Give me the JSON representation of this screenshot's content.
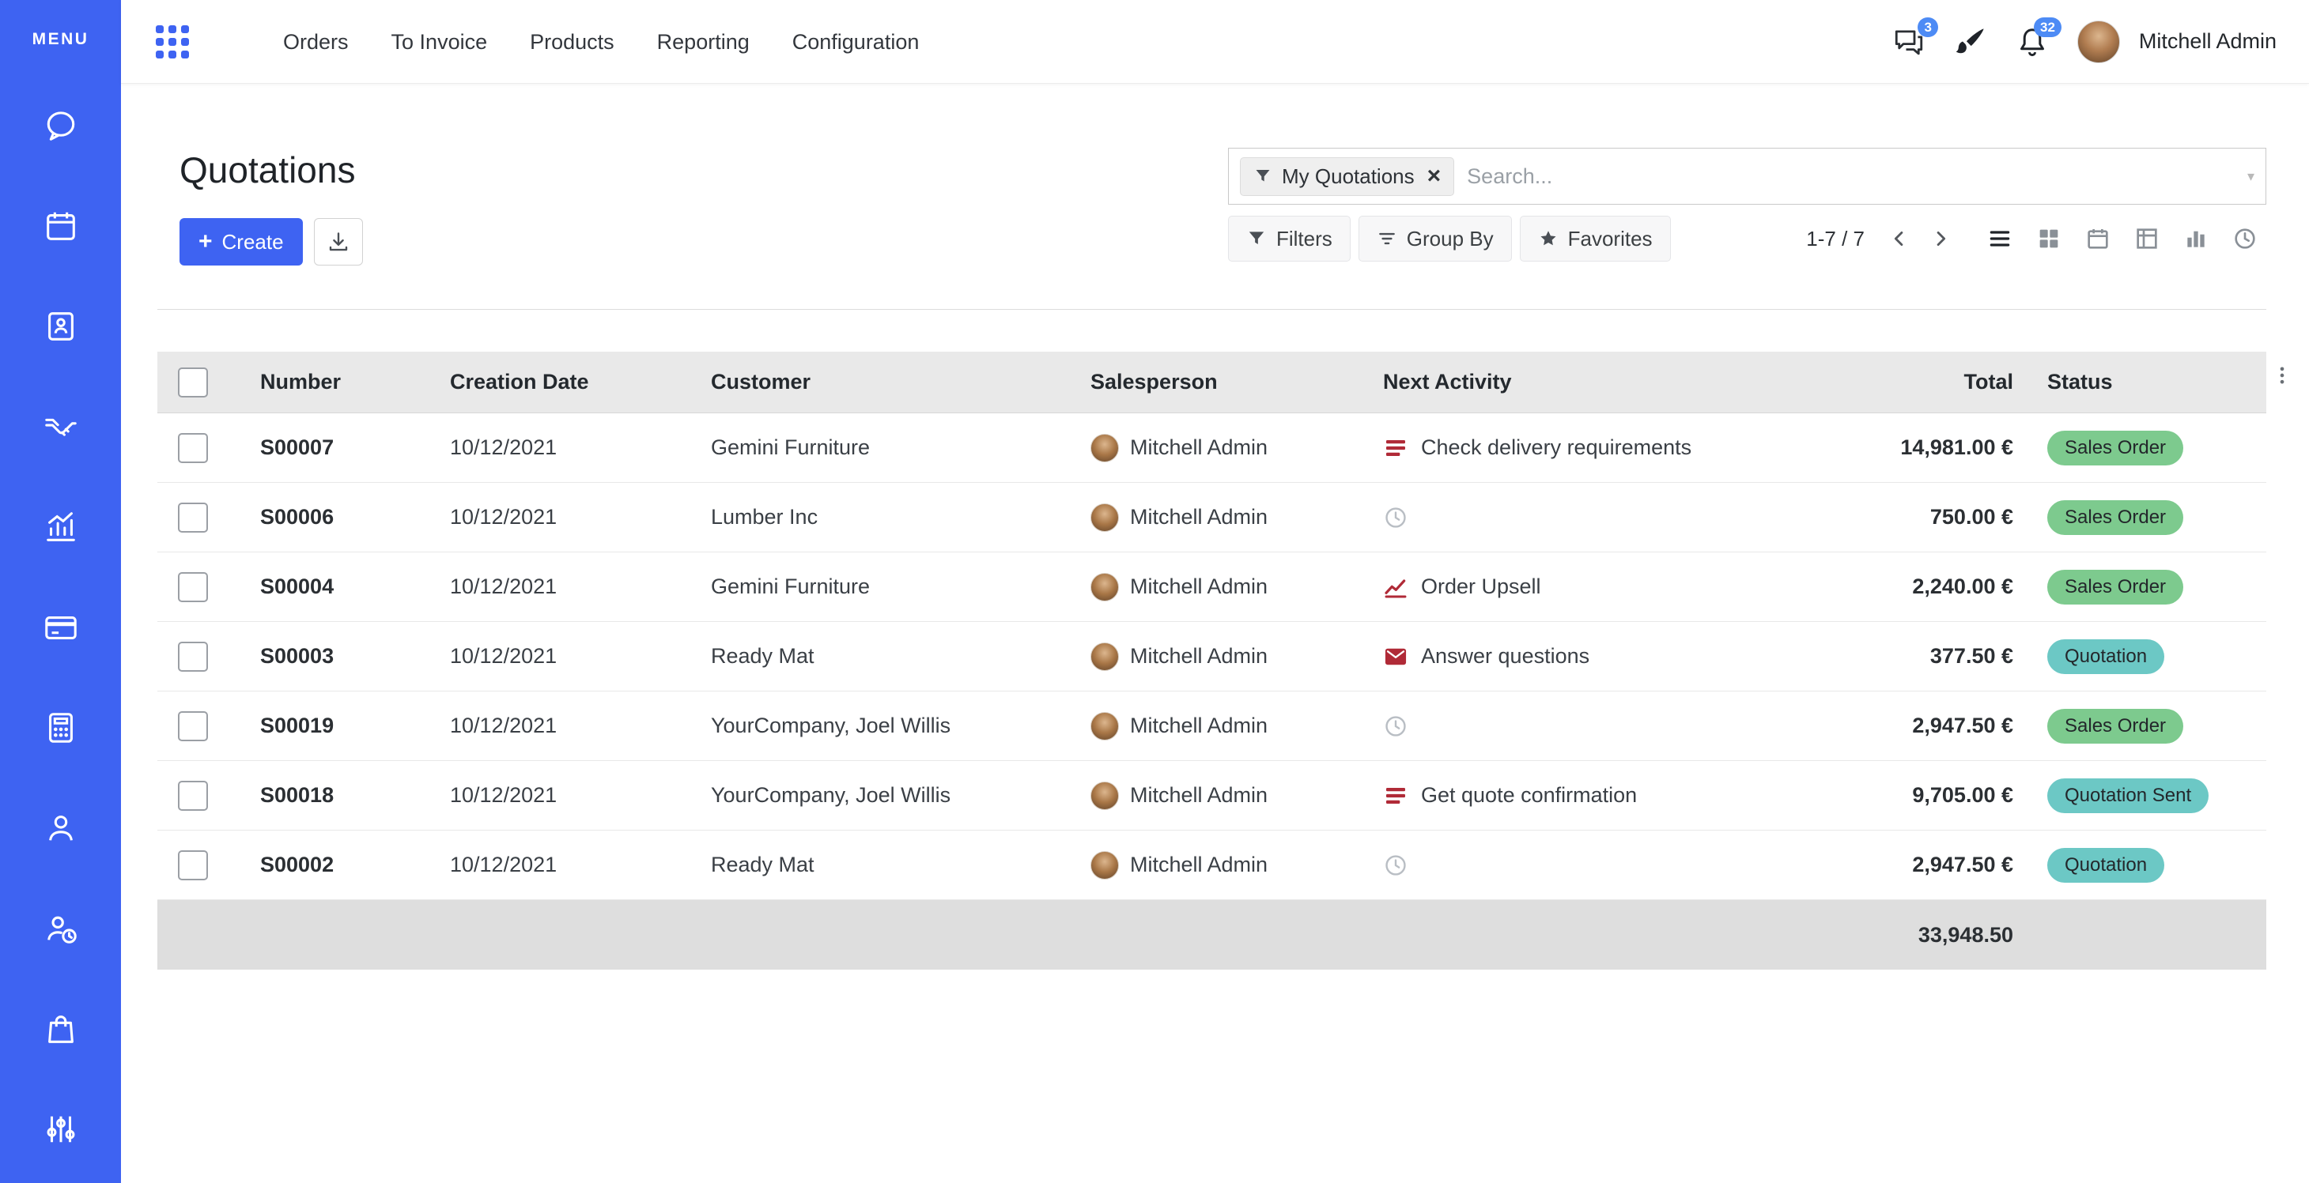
{
  "colors": {
    "sidebar_bg": "#3E63F2",
    "primary": "#3E63F2",
    "badge_blue": "#4D8BF5",
    "status_green": "#7DCA8E",
    "status_teal": "#6CC8C5",
    "activity_red": "#B02A37"
  },
  "sidebar": {
    "menu_label": "MENU",
    "icons": [
      "discuss",
      "calendar",
      "contacts",
      "crm",
      "sales",
      "billing",
      "accounting",
      "employees",
      "recruitment",
      "purchase",
      "settings"
    ]
  },
  "topbar": {
    "nav_items": [
      "Orders",
      "To Invoice",
      "Products",
      "Reporting",
      "Configuration"
    ],
    "messages_badge": "3",
    "notifications_badge": "32",
    "user_name": "Mitchell Admin"
  },
  "page": {
    "title": "Quotations",
    "create_label": "Create",
    "filters_label": "Filters",
    "group_by_label": "Group By",
    "favorites_label": "Favorites",
    "pager": "1-7 / 7"
  },
  "search": {
    "facet_label": "My Quotations",
    "placeholder": "Search..."
  },
  "view_switcher": [
    "list",
    "kanban",
    "calendar",
    "pivot",
    "graph",
    "activity"
  ],
  "table": {
    "columns": [
      "Number",
      "Creation Date",
      "Customer",
      "Salesperson",
      "Next Activity",
      "Total",
      "Status"
    ],
    "rows": [
      {
        "number": "S00007",
        "creation_date": "10/12/2021",
        "customer": "Gemini Furniture",
        "salesperson": "Mitchell Admin",
        "activity_icon": "list",
        "activity_label": "Check delivery requirements",
        "total": "14,981.00 €",
        "status": "Sales Order",
        "status_variant": "green"
      },
      {
        "number": "S00006",
        "creation_date": "10/12/2021",
        "customer": "Lumber Inc",
        "salesperson": "Mitchell Admin",
        "activity_icon": "clock",
        "activity_label": "",
        "total": "750.00 €",
        "status": "Sales Order",
        "status_variant": "green"
      },
      {
        "number": "S00004",
        "creation_date": "10/12/2021",
        "customer": "Gemini Furniture",
        "salesperson": "Mitchell Admin",
        "activity_icon": "chart",
        "activity_label": "Order Upsell",
        "total": "2,240.00 €",
        "status": "Sales Order",
        "status_variant": "green"
      },
      {
        "number": "S00003",
        "creation_date": "10/12/2021",
        "customer": "Ready Mat",
        "salesperson": "Mitchell Admin",
        "activity_icon": "mail",
        "activity_label": "Answer questions",
        "total": "377.50 €",
        "status": "Quotation",
        "status_variant": "teal"
      },
      {
        "number": "S00019",
        "creation_date": "10/12/2021",
        "customer": "YourCompany, Joel Willis",
        "salesperson": "Mitchell Admin",
        "activity_icon": "clock",
        "activity_label": "",
        "total": "2,947.50 €",
        "status": "Sales Order",
        "status_variant": "green"
      },
      {
        "number": "S00018",
        "creation_date": "10/12/2021",
        "customer": "YourCompany, Joel Willis",
        "salesperson": "Mitchell Admin",
        "activity_icon": "list",
        "activity_label": "Get quote confirmation",
        "total": "9,705.00 €",
        "status": "Quotation Sent",
        "status_variant": "teal"
      },
      {
        "number": "S00002",
        "creation_date": "10/12/2021",
        "customer": "Ready Mat",
        "salesperson": "Mitchell Admin",
        "activity_icon": "clock",
        "activity_label": "",
        "total": "2,947.50 €",
        "status": "Quotation",
        "status_variant": "teal"
      }
    ],
    "footer_total": "33,948.50"
  }
}
